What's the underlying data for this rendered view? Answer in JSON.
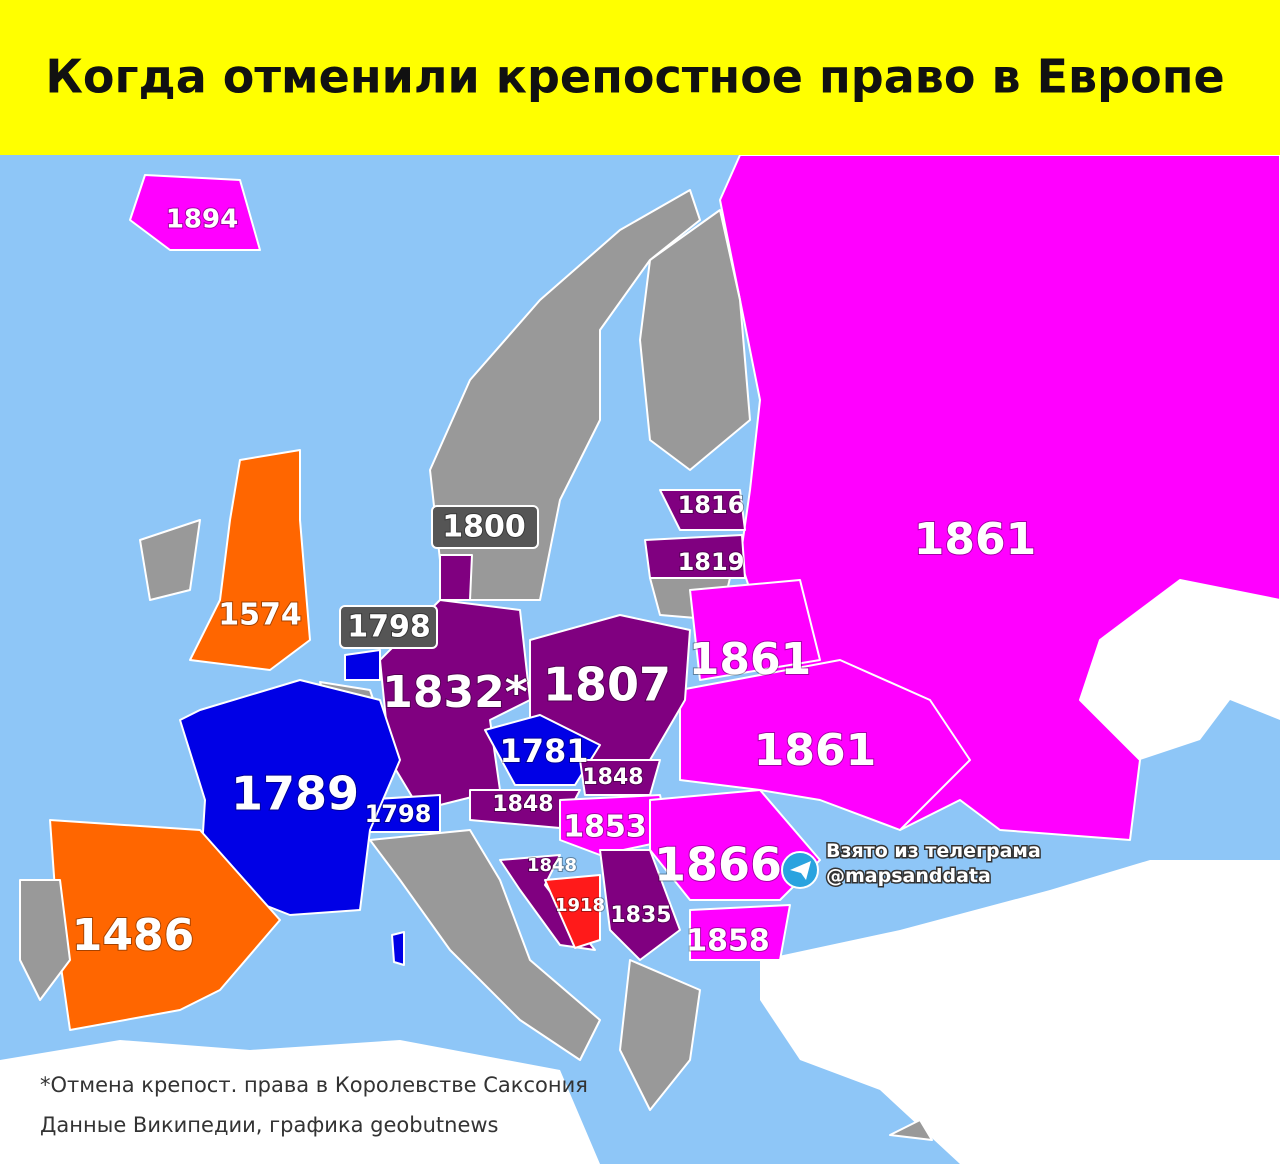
{
  "title": "Когда отменили крепостное право в Европе",
  "labels": [
    "1894",
    "1800",
    "1816",
    "1819",
    "1861",
    "1574",
    "1798",
    "1861",
    "1832*",
    "1807",
    "1781",
    "1861",
    "1789",
    "1848",
    "1798",
    "1848",
    "1853",
    "1866",
    "1848",
    "1918",
    "1835",
    "1858",
    "1486"
  ],
  "watermark": [
    "Взято из телеграма",
    "@mapsanddata"
  ],
  "footnote": [
    "*Отмена крепост. права в Королевстве Саксония",
    "Данные Википедии, графика geobutnews"
  ]
}
